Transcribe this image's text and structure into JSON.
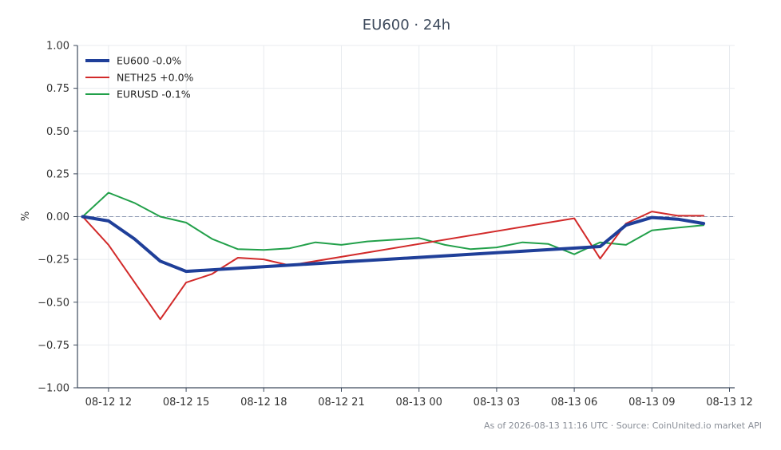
{
  "chart_data": {
    "type": "line",
    "title": "EU600 · 24h",
    "xlabel": "",
    "ylabel": "%",
    "ylim": [
      -1.0,
      1.0
    ],
    "y_ticks": [
      1.0,
      0.75,
      0.5,
      0.25,
      0.0,
      -0.25,
      -0.5,
      -0.75,
      -1.0
    ],
    "y_tick_labels": [
      "1.00",
      "0.75",
      "0.50",
      "0.25",
      "0.00",
      "−0.25",
      "−0.50",
      "−0.75",
      "−1.00"
    ],
    "x_ticks": [
      "08-12 12",
      "08-12 15",
      "08-12 18",
      "08-12 21",
      "08-13 00",
      "08-13 03",
      "08-13 06",
      "08-13 09",
      "08-13 12"
    ],
    "x_range_hours": [
      10.8,
      36.2
    ],
    "x_tick_hours": [
      12,
      15,
      18,
      21,
      24,
      27,
      30,
      33,
      36
    ],
    "grid": true,
    "zero_line": true,
    "legend_position": "top-left",
    "series": [
      {
        "name": "EU600 -0.0%",
        "color": "#1f3f99",
        "x": [
          11,
          12,
          13,
          14,
          15,
          31,
          32,
          33,
          34,
          35
        ],
        "y": [
          0.0,
          -0.025,
          -0.13,
          -0.26,
          -0.32,
          -0.175,
          -0.05,
          -0.005,
          -0.015,
          -0.04
        ]
      },
      {
        "name": "NETH25 +0.0%",
        "color": "#d22a2a",
        "x": [
          11,
          12,
          14,
          15,
          16,
          17,
          18,
          19,
          30,
          31,
          32,
          33,
          34,
          35
        ],
        "y": [
          0.0,
          -0.165,
          -0.6,
          -0.385,
          -0.335,
          -0.24,
          -0.25,
          -0.285,
          -0.01,
          -0.245,
          -0.04,
          0.03,
          0.005,
          0.005
        ]
      },
      {
        "name": "EURUSD -0.1%",
        "color": "#22a04a",
        "x": [
          11,
          12,
          13,
          14,
          15,
          16,
          17,
          18,
          19,
          20,
          21,
          22,
          23,
          24,
          25,
          26,
          27,
          28,
          29,
          30,
          31,
          32,
          33,
          34,
          35
        ],
        "y": [
          0.0,
          0.14,
          0.08,
          0.0,
          -0.035,
          -0.13,
          -0.19,
          -0.195,
          -0.185,
          -0.15,
          -0.165,
          -0.145,
          -0.135,
          -0.125,
          -0.165,
          -0.19,
          -0.18,
          -0.15,
          -0.16,
          -0.22,
          -0.15,
          -0.165,
          -0.08,
          -0.065,
          -0.05
        ]
      }
    ]
  },
  "footer": {
    "text": "As of 2026-08-13 11:16 UTC · Source: CoinUnited.io market API"
  },
  "colors": {
    "axis": "#3d4a5c",
    "grid": "#e8ebef",
    "zero_line": "#8f9bb3"
  }
}
